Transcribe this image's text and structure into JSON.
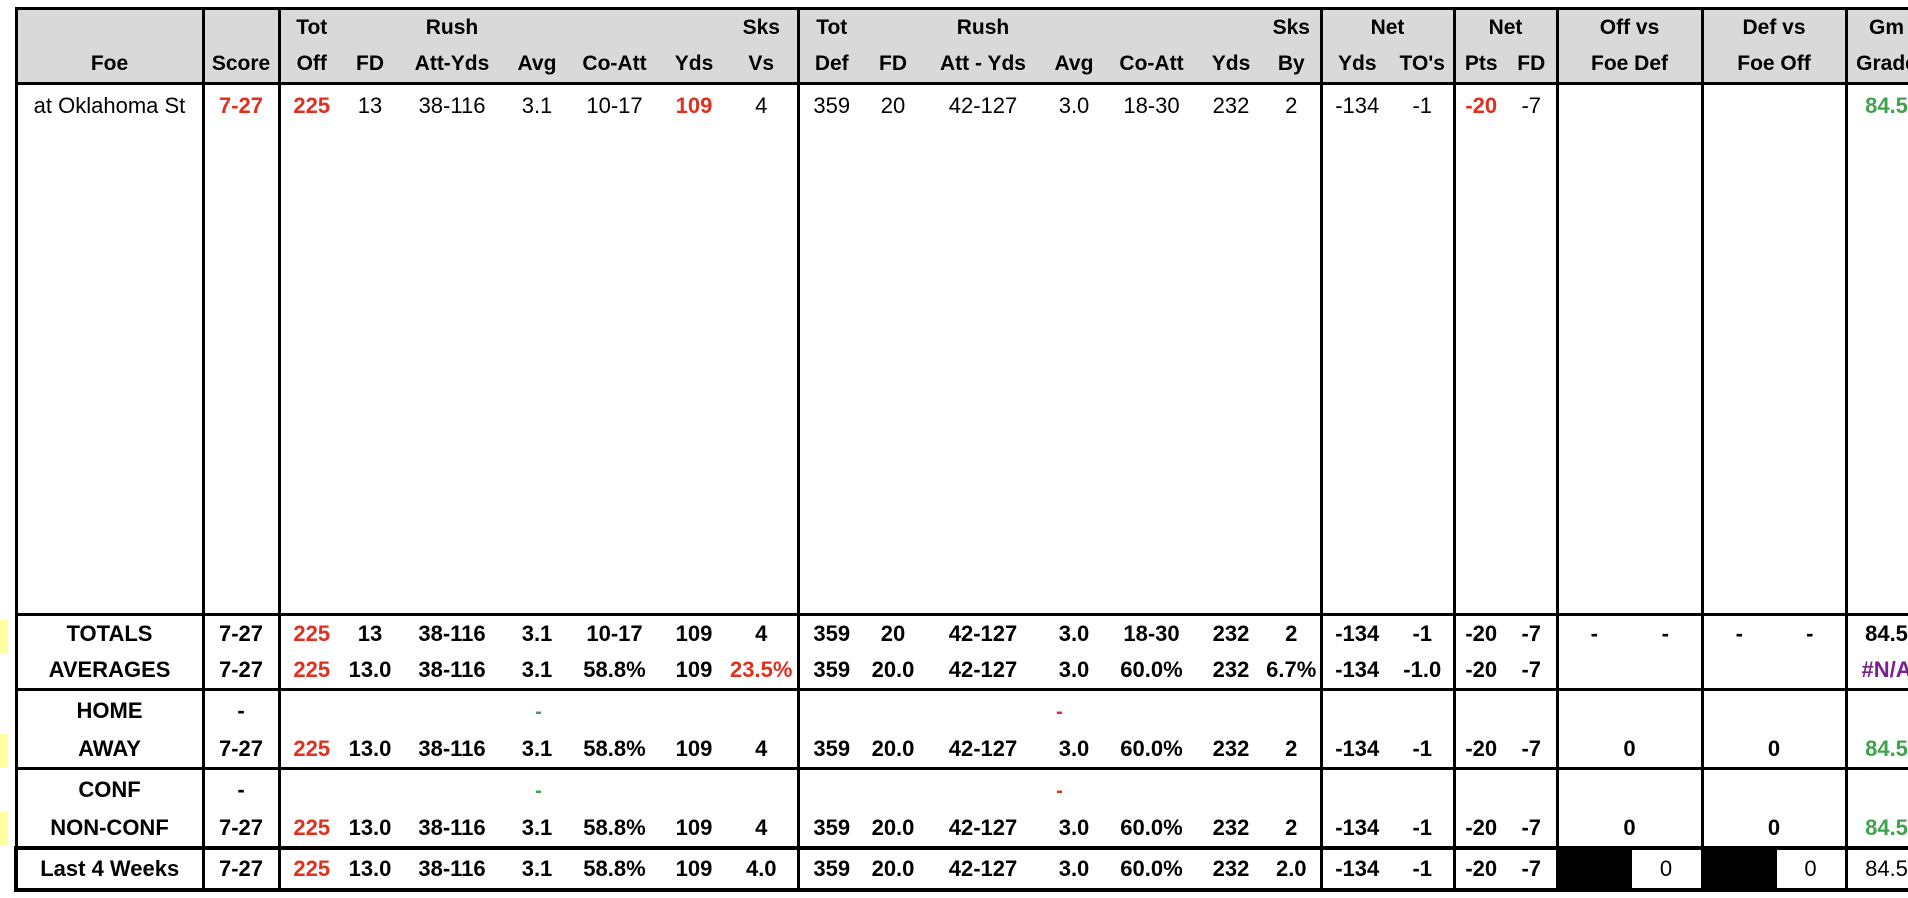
{
  "headers": {
    "row1": [
      "",
      "",
      "Tot",
      "",
      "Rush",
      "",
      "",
      "",
      "Sks",
      "Tot",
      "",
      "Rush",
      "",
      "",
      "",
      "Sks",
      "Net",
      "",
      "Net",
      "",
      "Off vs",
      "Def vs",
      "Gm"
    ],
    "row2": [
      "Foe",
      "Score",
      "Off",
      "FD",
      "Att-Yds",
      "Avg",
      "Co-Att",
      "Yds",
      "Vs",
      "Def",
      "FD",
      "Att - Yds",
      "Avg",
      "Co-Att",
      "Yds",
      "By",
      "Yds",
      "TO's",
      "Pts",
      "FD",
      "Foe Def",
      "Foe Off",
      "Grade"
    ]
  },
  "game": {
    "foe": "at Oklahoma St",
    "score": "7-27",
    "tot_off": "225",
    "fd": "13",
    "rush_att_yds": "38-116",
    "avg": "3.1",
    "co_att": "10-17",
    "yds": "109",
    "sks_vs": "4",
    "tot_def": "359",
    "def_fd": "20",
    "def_rush": "42-127",
    "def_avg": "3.0",
    "def_co_att": "18-30",
    "def_yds": "232",
    "sks_by": "2",
    "net_yds": "-134",
    "net_tos": "-1",
    "net_pts": "-20",
    "net_fd": "-7",
    "off_vs": "",
    "def_vs": "",
    "grade": "84.5"
  },
  "totals": {
    "label": "TOTALS",
    "score": "7-27",
    "tot_off": "225",
    "fd": "13",
    "rush": "38-116",
    "avg": "3.1",
    "co_att": "10-17",
    "yds": "109",
    "sks_vs": "4",
    "tot_def": "359",
    "def_fd": "20",
    "def_rush": "42-127",
    "def_avg": "3.0",
    "def_co_att": "18-30",
    "def_yds": "232",
    "sks_by": "2",
    "net_yds": "-134",
    "net_tos": "-1",
    "net_pts": "-20",
    "net_fd": "-7",
    "off_a": "-",
    "off_b": "-",
    "def_a": "-",
    "def_b": "-",
    "grade": "84.5"
  },
  "averages": {
    "label": "AVERAGES",
    "score": "7-27",
    "tot_off": "225",
    "fd": "13.0",
    "rush": "38-116",
    "avg": "3.1",
    "co_att": "58.8%",
    "yds": "109",
    "sks_vs": "23.5%",
    "tot_def": "359",
    "def_fd": "20.0",
    "def_rush": "42-127",
    "def_avg": "3.0",
    "def_co_att": "60.0%",
    "def_yds": "232",
    "sks_by": "6.7%",
    "net_yds": "-134",
    "net_tos": "-1.0",
    "net_pts": "-20",
    "net_fd": "-7",
    "grade": "#N/A"
  },
  "home": {
    "label": "HOME",
    "score": "-",
    "rush_dash": "-",
    "def_rush_dash": "-"
  },
  "away": {
    "label": "AWAY",
    "score": "7-27",
    "tot_off": "225",
    "fd": "13.0",
    "rush": "38-116",
    "avg": "3.1",
    "co_att": "58.8%",
    "yds": "109",
    "sks_vs": "4",
    "tot_def": "359",
    "def_fd": "20.0",
    "def_rush": "42-127",
    "def_avg": "3.0",
    "def_co_att": "60.0%",
    "def_yds": "232",
    "sks_by": "2",
    "net_yds": "-134",
    "net_tos": "-1",
    "net_pts": "-20",
    "net_fd": "-7",
    "off_vs": "0",
    "def_vs": "0",
    "grade": "84.5"
  },
  "conf": {
    "label": "CONF",
    "score": "-",
    "rush_dash": "-",
    "def_rush_dash": "-"
  },
  "nonconf": {
    "label": "NON-CONF",
    "score": "7-27",
    "tot_off": "225",
    "fd": "13.0",
    "rush": "38-116",
    "avg": "3.1",
    "co_att": "58.8%",
    "yds": "109",
    "sks_vs": "4",
    "tot_def": "359",
    "def_fd": "20.0",
    "def_rush": "42-127",
    "def_avg": "3.0",
    "def_co_att": "60.0%",
    "def_yds": "232",
    "sks_by": "2",
    "net_yds": "-134",
    "net_tos": "-1",
    "net_pts": "-20",
    "net_fd": "-7",
    "off_vs": "0",
    "def_vs": "0",
    "grade": "84.5"
  },
  "last4": {
    "label": "Last 4 Weeks",
    "score": "7-27",
    "tot_off": "225",
    "fd": "13.0",
    "rush": "38-116",
    "avg": "3.1",
    "co_att": "58.8%",
    "yds": "109",
    "sks_vs": "4.0",
    "tot_def": "359",
    "def_fd": "20.0",
    "def_rush": "42-127",
    "def_avg": "3.0",
    "def_co_att": "60.0%",
    "def_yds": "232",
    "sks_by": "2.0",
    "net_yds": "-134",
    "net_tos": "-1",
    "net_pts": "-20",
    "net_fd": "-7",
    "off_vs": "0",
    "def_vs": "0",
    "grade": "84.5"
  },
  "colors": {
    "bad": "#e0301e",
    "good": "#3fa34d",
    "na": "#7a1f8e",
    "header_bg": "#d9d9d9"
  }
}
